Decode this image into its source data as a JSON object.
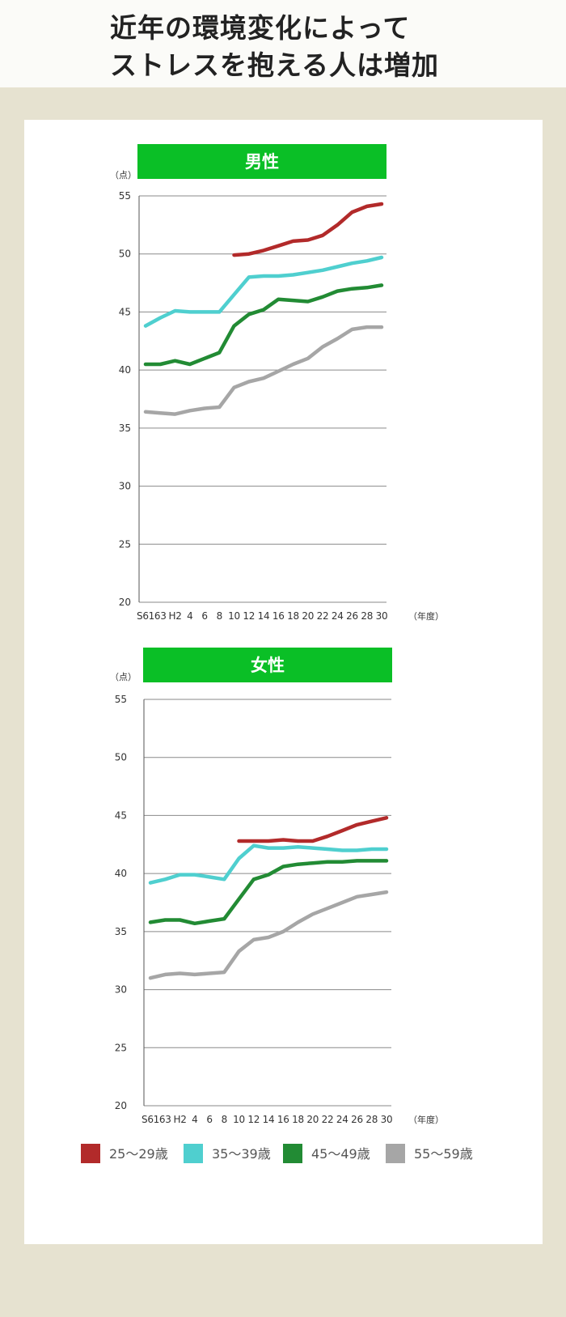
{
  "title": {
    "line1": "近年の環境変化によって",
    "line2": "ストレスを抱える人は増加"
  },
  "colors": {
    "band": "#0abf26",
    "series": [
      "#b22a2a",
      "#4fcfcf",
      "#228b34",
      "#a6a6a6"
    ]
  },
  "chart_data": [
    {
      "type": "line",
      "title": "男性",
      "ylabel": "（点）",
      "xlabel": "（年度）",
      "ylim": [
        20,
        55
      ],
      "yticks": [
        "55",
        "50",
        "45",
        "40",
        "35",
        "30",
        "25",
        "20"
      ],
      "categories": [
        "S61",
        "63",
        "H2",
        "4",
        "6",
        "8",
        "10",
        "12",
        "14",
        "16",
        "18",
        "20",
        "22",
        "24",
        "26",
        "28",
        "30"
      ],
      "series": [
        {
          "name": "25〜29歳",
          "values": [
            null,
            null,
            null,
            null,
            null,
            null,
            49.9,
            50.0,
            50.3,
            50.7,
            51.1,
            51.2,
            51.6,
            52.5,
            53.6,
            54.1,
            54.3
          ]
        },
        {
          "name": "35〜39歳",
          "values": [
            43.8,
            44.5,
            45.1,
            45.0,
            45.0,
            45.0,
            46.5,
            48.0,
            48.1,
            48.1,
            48.2,
            48.4,
            48.6,
            48.9,
            49.2,
            49.4,
            49.7
          ]
        },
        {
          "name": "45〜49歳",
          "values": [
            40.5,
            40.5,
            40.8,
            40.5,
            41.0,
            41.5,
            43.8,
            44.8,
            45.2,
            46.1,
            46.0,
            45.9,
            46.3,
            46.8,
            47.0,
            47.1,
            47.3
          ]
        },
        {
          "name": "55〜59歳",
          "values": [
            36.4,
            36.3,
            36.2,
            36.5,
            36.7,
            36.8,
            38.5,
            39.0,
            39.3,
            39.9,
            40.5,
            41.0,
            42.0,
            42.7,
            43.5,
            43.7,
            43.7
          ]
        }
      ]
    },
    {
      "type": "line",
      "title": "女性",
      "ylabel": "（点）",
      "xlabel": "（年度）",
      "ylim": [
        20,
        55
      ],
      "yticks": [
        "55",
        "50",
        "45",
        "40",
        "35",
        "30",
        "25",
        "20"
      ],
      "categories": [
        "S61",
        "63",
        "H2",
        "4",
        "6",
        "8",
        "10",
        "12",
        "14",
        "16",
        "18",
        "20",
        "22",
        "24",
        "26",
        "28",
        "30"
      ],
      "series": [
        {
          "name": "25〜29歳",
          "values": [
            null,
            null,
            null,
            null,
            null,
            null,
            42.8,
            42.8,
            42.8,
            42.9,
            42.8,
            42.8,
            43.2,
            43.7,
            44.2,
            44.5,
            44.8
          ]
        },
        {
          "name": "35〜39歳",
          "values": [
            39.2,
            39.5,
            39.9,
            39.9,
            39.7,
            39.5,
            41.3,
            42.4,
            42.2,
            42.2,
            42.3,
            42.2,
            42.1,
            42.0,
            42.0,
            42.1,
            42.1
          ]
        },
        {
          "name": "45〜49歳",
          "values": [
            35.8,
            36.0,
            36.0,
            35.7,
            35.9,
            36.1,
            37.8,
            39.5,
            39.9,
            40.6,
            40.8,
            40.9,
            41.0,
            41.0,
            41.1,
            41.1,
            41.1
          ]
        },
        {
          "name": "55〜59歳",
          "values": [
            31.0,
            31.3,
            31.4,
            31.3,
            31.4,
            31.5,
            33.3,
            34.3,
            34.5,
            35.0,
            35.8,
            36.5,
            37.0,
            37.5,
            38.0,
            38.2,
            38.4
          ]
        }
      ]
    }
  ]
}
